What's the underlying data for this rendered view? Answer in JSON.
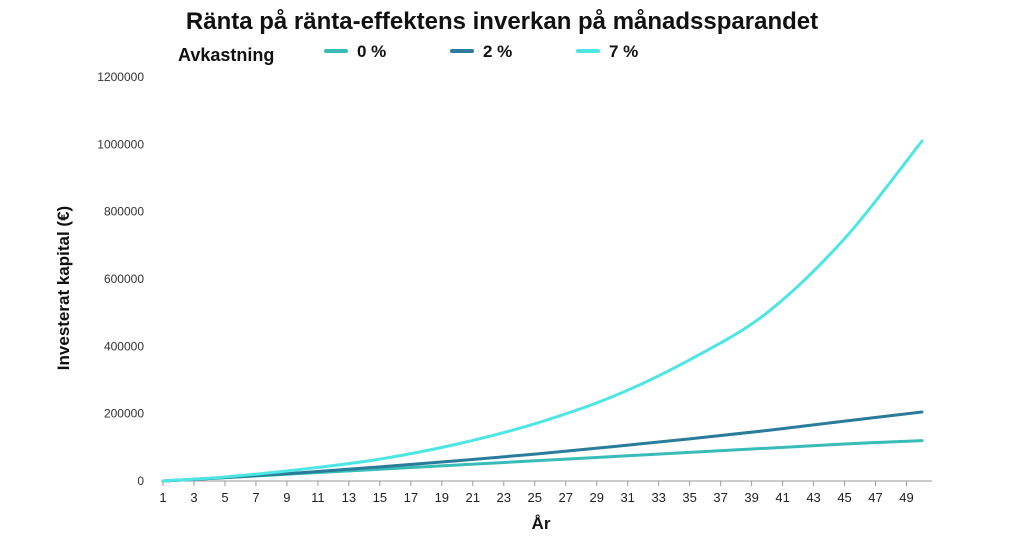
{
  "chart_data": {
    "type": "line",
    "title": "Ränta på ränta-effektens inverkan på månadssparandet",
    "legend_title": "Avkastning",
    "legend_position": "top",
    "xlabel": "År",
    "ylabel": "Investerat kapital (€)",
    "xlim": [
      1,
      50
    ],
    "ylim": [
      0,
      1200000
    ],
    "grid": false,
    "x_ticks": [
      1,
      3,
      5,
      7,
      9,
      11,
      13,
      15,
      17,
      19,
      21,
      23,
      25,
      27,
      29,
      31,
      33,
      35,
      37,
      39,
      41,
      43,
      45,
      47,
      49
    ],
    "y_ticks": [
      0,
      200000,
      400000,
      600000,
      800000,
      1000000,
      1200000
    ],
    "y_tick_labels": [
      "0",
      "200000",
      "400000",
      "600000",
      "800000",
      "1000000",
      "1200000"
    ],
    "x": [
      1,
      5,
      10,
      15,
      20,
      25,
      30,
      35,
      40,
      45,
      50
    ],
    "series": [
      {
        "name": "0 %",
        "color": "#38bcb8",
        "values": [
          0,
          10000,
          22500,
          35000,
          47500,
          60000,
          72500,
          85000,
          97500,
          110000,
          120000
        ]
      },
      {
        "name": "2 %",
        "color": "#2a7d9a",
        "values": [
          0,
          10200,
          25000,
          42000,
          60000,
          80000,
          102000,
          125000,
          150000,
          178000,
          205000
        ]
      },
      {
        "name": "7 %",
        "color": "#4ee5e5",
        "values": [
          0,
          12000,
          35000,
          65000,
          110000,
          170000,
          250000,
          360000,
          500000,
          720000,
          1010000
        ]
      }
    ]
  }
}
